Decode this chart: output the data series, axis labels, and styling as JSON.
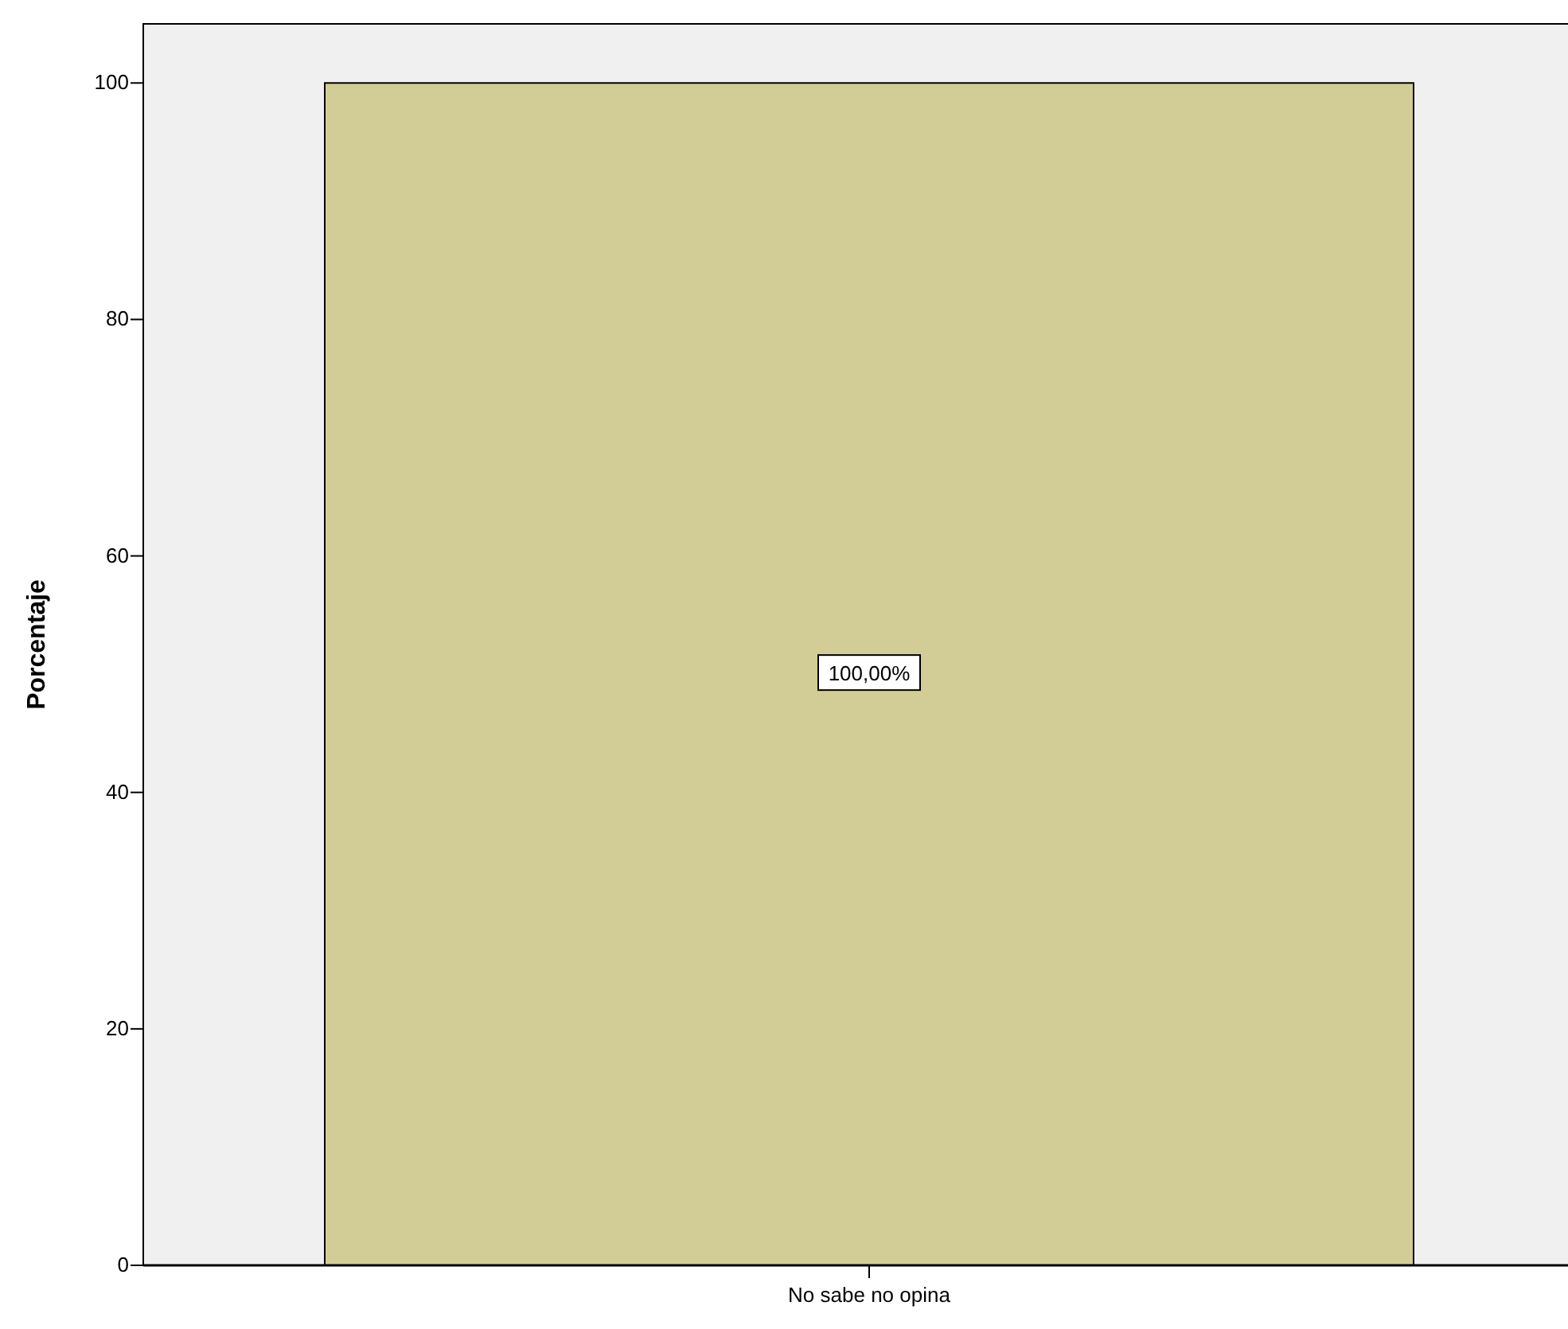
{
  "chart_data": {
    "type": "bar",
    "ylabel": "Porcentaje",
    "categories": [
      "No sabe no opina"
    ],
    "values": [
      100
    ],
    "value_labels": [
      "100,00%"
    ],
    "color": "#d2cd96",
    "ylim": [
      0,
      105
    ],
    "yticks": [
      0,
      20,
      40,
      60,
      80,
      100
    ],
    "grid": false
  }
}
